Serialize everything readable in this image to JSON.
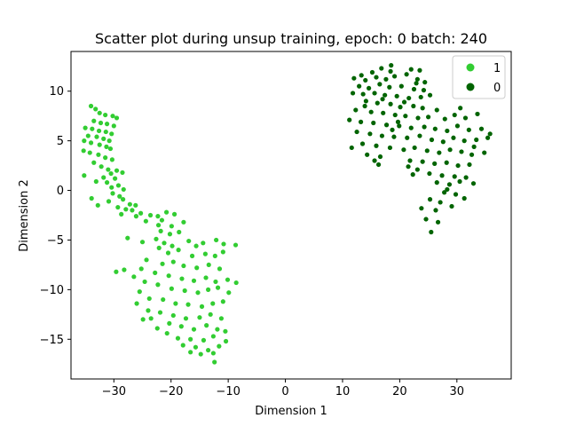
{
  "chart_data": {
    "type": "scatter",
    "title": "Scatter plot during unsup training, epoch: 0 batch: 240",
    "xlabel": "Dimension 1",
    "ylabel": "Dimension 2",
    "xlim": [
      -37.5,
      39.5
    ],
    "ylim": [
      -19,
      14
    ],
    "xticks": [
      -30,
      -20,
      -10,
      0,
      10,
      20,
      30
    ],
    "yticks": [
      -15,
      -10,
      -5,
      0,
      5,
      10
    ],
    "xtick_labels": [
      "−30",
      "−20",
      "−10",
      "0",
      "10",
      "20",
      "30"
    ],
    "ytick_labels": [
      "−15",
      "−10",
      "−5",
      "0",
      "5",
      "10"
    ],
    "grid": false,
    "legend_position": "upper right",
    "series": [
      {
        "name": "1",
        "color": "#32cd32",
        "points": [
          [
            -34.0,
            8.5
          ],
          [
            -33.2,
            8.2
          ],
          [
            -32.5,
            7.8
          ],
          [
            -31.5,
            7.6
          ],
          [
            -30.2,
            7.5
          ],
          [
            -29.5,
            7.3
          ],
          [
            -33.5,
            7.0
          ],
          [
            -32.3,
            6.8
          ],
          [
            -31.2,
            6.7
          ],
          [
            -30.0,
            6.5
          ],
          [
            -35.0,
            6.3
          ],
          [
            -33.8,
            6.2
          ],
          [
            -32.6,
            6.0
          ],
          [
            -31.4,
            5.9
          ],
          [
            -30.4,
            5.7
          ],
          [
            -34.5,
            5.5
          ],
          [
            -33.0,
            5.4
          ],
          [
            -31.8,
            5.2
          ],
          [
            -30.8,
            5.0
          ],
          [
            -35.2,
            5.0
          ],
          [
            -34.0,
            4.8
          ],
          [
            -32.5,
            4.6
          ],
          [
            -31.3,
            4.4
          ],
          [
            -30.6,
            4.2
          ],
          [
            -35.3,
            4.0
          ],
          [
            -34.2,
            3.8
          ],
          [
            -32.7,
            3.6
          ],
          [
            -31.5,
            3.3
          ],
          [
            -30.3,
            3.1
          ],
          [
            -33.5,
            2.8
          ],
          [
            -32.2,
            2.4
          ],
          [
            -31.0,
            2.1
          ],
          [
            -29.5,
            2.0
          ],
          [
            -30.5,
            1.7
          ],
          [
            -28.5,
            1.8
          ],
          [
            -35.2,
            1.5
          ],
          [
            -31.8,
            1.3
          ],
          [
            -29.8,
            1.2
          ],
          [
            -33.1,
            0.9
          ],
          [
            -31.2,
            0.8
          ],
          [
            -29.2,
            0.5
          ],
          [
            -30.4,
            0.3
          ],
          [
            -28.3,
            0.1
          ],
          [
            -30.2,
            -0.3
          ],
          [
            -29.0,
            -0.6
          ],
          [
            -33.9,
            -0.8
          ],
          [
            -28.4,
            -0.9
          ],
          [
            -30.9,
            -1.1
          ],
          [
            -32.8,
            -1.5
          ],
          [
            -27.2,
            -1.4
          ],
          [
            -26.2,
            -1.5
          ],
          [
            -29.3,
            -1.7
          ],
          [
            -27.9,
            -1.9
          ],
          [
            -26.8,
            -2.0
          ],
          [
            -25.3,
            -2.3
          ],
          [
            -28.7,
            -2.4
          ],
          [
            -26.1,
            -2.6
          ],
          [
            -23.6,
            -2.5
          ],
          [
            -22.3,
            -2.6
          ],
          [
            -20.8,
            -2.2
          ],
          [
            -19.4,
            -2.4
          ],
          [
            -21.6,
            -3.0
          ],
          [
            -24.4,
            -3.1
          ],
          [
            -22.2,
            -3.5
          ],
          [
            -19.9,
            -3.6
          ],
          [
            -17.8,
            -3.2
          ],
          [
            -21.8,
            -4.1
          ],
          [
            -20.2,
            -4.4
          ],
          [
            -18.6,
            -4.2
          ],
          [
            -22.6,
            -4.9
          ],
          [
            -21.2,
            -5.3
          ],
          [
            -19.8,
            -5.6
          ],
          [
            -16.9,
            -5.1
          ],
          [
            -15.6,
            -5.6
          ],
          [
            -14.4,
            -5.3
          ],
          [
            -12.1,
            -5.0
          ],
          [
            -10.8,
            -5.4
          ],
          [
            -8.7,
            -5.5
          ],
          [
            -27.6,
            -4.8
          ],
          [
            -25.0,
            -5.2
          ],
          [
            -22.1,
            -5.8
          ],
          [
            -20.5,
            -6.3
          ],
          [
            -18.7,
            -6.0
          ],
          [
            -16.3,
            -6.6
          ],
          [
            -14.0,
            -6.4
          ],
          [
            -12.3,
            -6.6
          ],
          [
            -10.9,
            -6.2
          ],
          [
            -24.3,
            -7.0
          ],
          [
            -21.5,
            -7.4
          ],
          [
            -19.6,
            -7.2
          ],
          [
            -17.8,
            -7.6
          ],
          [
            -15.5,
            -7.8
          ],
          [
            -13.4,
            -7.5
          ],
          [
            -11.5,
            -7.9
          ],
          [
            -25.2,
            -7.9
          ],
          [
            -22.8,
            -8.3
          ],
          [
            -20.4,
            -8.6
          ],
          [
            -18.1,
            -8.9
          ],
          [
            -16.0,
            -9.1
          ],
          [
            -13.9,
            -8.8
          ],
          [
            -12.2,
            -9.2
          ],
          [
            -10.1,
            -9.0
          ],
          [
            -8.6,
            -9.3
          ],
          [
            -28.2,
            -8.0
          ],
          [
            -26.5,
            -8.7
          ],
          [
            -24.6,
            -9.2
          ],
          [
            -22.3,
            -9.5
          ],
          [
            -19.9,
            -9.9
          ],
          [
            -17.6,
            -10.1
          ],
          [
            -15.3,
            -10.3
          ],
          [
            -13.5,
            -10.0
          ],
          [
            -11.8,
            -9.8
          ],
          [
            -9.9,
            -10.3
          ],
          [
            -25.5,
            -10.2
          ],
          [
            -23.8,
            -10.9
          ],
          [
            -21.4,
            -11.0
          ],
          [
            -19.2,
            -11.4
          ],
          [
            -17.0,
            -11.5
          ],
          [
            -14.6,
            -11.7
          ],
          [
            -12.7,
            -11.4
          ],
          [
            -10.9,
            -11.2
          ],
          [
            -26.0,
            -11.4
          ],
          [
            -24.0,
            -12.1
          ],
          [
            -21.9,
            -12.3
          ],
          [
            -19.6,
            -12.6
          ],
          [
            -17.4,
            -12.9
          ],
          [
            -15.0,
            -12.8
          ],
          [
            -13.1,
            -12.5
          ],
          [
            -11.2,
            -12.9
          ],
          [
            -23.5,
            -12.9
          ],
          [
            -20.3,
            -13.4
          ],
          [
            -18.2,
            -13.7
          ],
          [
            -16.0,
            -14.0
          ],
          [
            -13.8,
            -13.6
          ],
          [
            -11.9,
            -14.0
          ],
          [
            -10.5,
            -14.2
          ],
          [
            -20.7,
            -14.4
          ],
          [
            -18.8,
            -14.9
          ],
          [
            -16.6,
            -15.0
          ],
          [
            -14.3,
            -15.1
          ],
          [
            -12.6,
            -14.7
          ],
          [
            -10.4,
            -15.2
          ],
          [
            -17.9,
            -15.6
          ],
          [
            -15.7,
            -15.8
          ],
          [
            -13.5,
            -16.1
          ],
          [
            -11.6,
            -15.7
          ],
          [
            -16.6,
            -16.3
          ],
          [
            -14.8,
            -16.5
          ],
          [
            -12.6,
            -16.4
          ],
          [
            -12.4,
            -17.3
          ],
          [
            -24.9,
            -13.0
          ],
          [
            -22.4,
            -13.9
          ],
          [
            -29.6,
            -8.2
          ]
        ]
      },
      {
        "name": "0",
        "color": "#006400",
        "points": [
          [
            13.3,
            11.6
          ],
          [
            15.2,
            11.9
          ],
          [
            16.8,
            12.3
          ],
          [
            18.4,
            12.0
          ],
          [
            22.0,
            12.2
          ],
          [
            23.5,
            12.1
          ],
          [
            12.0,
            11.3
          ],
          [
            14.0,
            11.1
          ],
          [
            15.9,
            11.4
          ],
          [
            17.6,
            11.2
          ],
          [
            19.1,
            11.5
          ],
          [
            21.2,
            11.7
          ],
          [
            23.1,
            11.2
          ],
          [
            24.4,
            10.9
          ],
          [
            12.9,
            10.5
          ],
          [
            14.6,
            10.3
          ],
          [
            16.5,
            10.7
          ],
          [
            18.2,
            10.4
          ],
          [
            20.3,
            10.5
          ],
          [
            22.5,
            10.2
          ],
          [
            24.2,
            10.1
          ],
          [
            11.8,
            9.8
          ],
          [
            13.6,
            9.7
          ],
          [
            15.6,
            9.8
          ],
          [
            17.4,
            9.6
          ],
          [
            19.5,
            9.5
          ],
          [
            21.6,
            9.3
          ],
          [
            23.7,
            9.4
          ],
          [
            25.3,
            9.6
          ],
          [
            14.1,
            9.0
          ],
          [
            16.1,
            8.8
          ],
          [
            18.4,
            8.7
          ],
          [
            20.1,
            8.4
          ],
          [
            22.4,
            8.5
          ],
          [
            24.0,
            8.3
          ],
          [
            26.5,
            8.1
          ],
          [
            12.3,
            8.1
          ],
          [
            15.0,
            7.9
          ],
          [
            17.1,
            7.8
          ],
          [
            19.2,
            7.6
          ],
          [
            21.0,
            7.5
          ],
          [
            23.2,
            7.3
          ],
          [
            25.0,
            7.4
          ],
          [
            27.9,
            7.2
          ],
          [
            29.6,
            7.6
          ],
          [
            31.5,
            7.3
          ],
          [
            33.6,
            7.7
          ],
          [
            11.2,
            7.1
          ],
          [
            13.2,
            6.9
          ],
          [
            15.4,
            6.8
          ],
          [
            17.7,
            6.6
          ],
          [
            19.9,
            6.5
          ],
          [
            22.0,
            6.3
          ],
          [
            24.3,
            6.4
          ],
          [
            26.2,
            6.2
          ],
          [
            28.3,
            6.0
          ],
          [
            30.1,
            6.5
          ],
          [
            32.1,
            6.1
          ],
          [
            34.3,
            6.2
          ],
          [
            12.5,
            5.9
          ],
          [
            14.8,
            5.7
          ],
          [
            16.9,
            5.5
          ],
          [
            19.0,
            5.4
          ],
          [
            21.3,
            5.3
          ],
          [
            23.5,
            5.5
          ],
          [
            25.6,
            5.1
          ],
          [
            27.6,
            4.9
          ],
          [
            29.4,
            5.3
          ],
          [
            31.3,
            5.0
          ],
          [
            33.4,
            5.1
          ],
          [
            35.4,
            5.3
          ],
          [
            13.5,
            4.7
          ],
          [
            15.9,
            4.5
          ],
          [
            18.3,
            4.3
          ],
          [
            20.7,
            4.1
          ],
          [
            22.6,
            4.3
          ],
          [
            24.8,
            4.0
          ],
          [
            26.9,
            3.8
          ],
          [
            28.8,
            4.1
          ],
          [
            30.8,
            3.9
          ],
          [
            32.6,
            3.6
          ],
          [
            34.8,
            3.8
          ],
          [
            11.6,
            4.3
          ],
          [
            14.3,
            3.6
          ],
          [
            16.6,
            3.4
          ],
          [
            21.8,
            3.0
          ],
          [
            24.0,
            2.9
          ],
          [
            26.1,
            2.7
          ],
          [
            28.2,
            2.8
          ],
          [
            30.2,
            2.5
          ],
          [
            32.2,
            2.6
          ],
          [
            16.3,
            2.6
          ],
          [
            23.1,
            2.1
          ],
          [
            25.2,
            1.7
          ],
          [
            27.4,
            1.5
          ],
          [
            29.6,
            1.4
          ],
          [
            31.6,
            1.3
          ],
          [
            22.3,
            1.6
          ],
          [
            26.5,
            0.8
          ],
          [
            28.7,
            0.6
          ],
          [
            30.5,
            0.9
          ],
          [
            32.9,
            0.7
          ],
          [
            27.8,
            -0.2
          ],
          [
            29.8,
            -0.4
          ],
          [
            31.3,
            -0.8
          ],
          [
            25.3,
            -0.9
          ],
          [
            27.1,
            -1.2
          ],
          [
            29.1,
            -1.6
          ],
          [
            23.8,
            -1.8
          ],
          [
            26.3,
            -2.0
          ],
          [
            24.6,
            -2.9
          ],
          [
            26.7,
            -3.2
          ],
          [
            25.5,
            -4.2
          ],
          [
            28.3,
            0.1
          ],
          [
            18.5,
            12.6
          ],
          [
            17.0,
            9.2
          ],
          [
            20.8,
            8.9
          ],
          [
            30.6,
            8.3
          ],
          [
            35.8,
            5.7
          ],
          [
            33.0,
            4.4
          ],
          [
            15.6,
            3.0
          ],
          [
            19.7,
            6.9
          ],
          [
            22.9,
            10.8
          ],
          [
            13.9,
            8.5
          ],
          [
            18.7,
            6.1
          ],
          [
            21.5,
            2.4
          ]
        ]
      }
    ]
  }
}
